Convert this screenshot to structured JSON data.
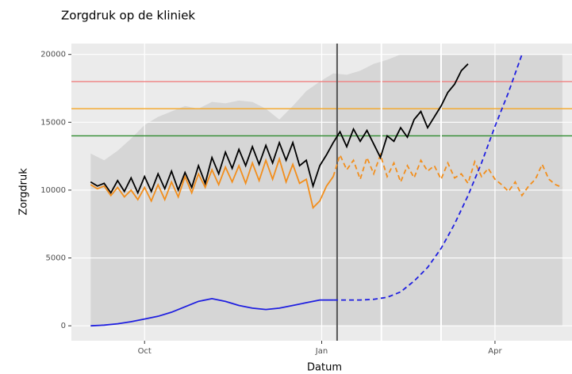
{
  "chart_data": {
    "type": "line",
    "title": "Zorgdruk op de kliniek",
    "xlabel": "Datum",
    "ylabel": "Zorgdruk",
    "xlim": [
      -38,
      222
    ],
    "ylim": [
      -1100,
      20800
    ],
    "xticks": [
      {
        "value": 0,
        "label": "Oct"
      },
      {
        "value": 92,
        "label": "Jan"
      },
      {
        "value": 182,
        "label": "Apr"
      }
    ],
    "yticks": [
      0,
      5000,
      10000,
      15000,
      20000
    ],
    "grid": true,
    "hlines": [
      {
        "y": 18000,
        "color": "#f08080"
      },
      {
        "y": 16000,
        "color": "#f5a623"
      },
      {
        "y": 14000,
        "color": "#2e8b2e"
      }
    ],
    "vlines": [
      {
        "x": 100,
        "color": "#555555"
      },
      {
        "x": 123,
        "color": "#ffffff"
      },
      {
        "x": 154,
        "color": "#ffffff"
      }
    ],
    "areas": [
      {
        "color": "#d6d6d6",
        "x": [
          -28,
          -21,
          -14,
          -7,
          0,
          7,
          14,
          21,
          28,
          35,
          42,
          49,
          56,
          63,
          70,
          77,
          84,
          91,
          98,
          105,
          112,
          119,
          126,
          133,
          140,
          147,
          154,
          161,
          168,
          175,
          182,
          189,
          196,
          203,
          210,
          217
        ],
        "values": [
          12700,
          12200,
          12900,
          13800,
          14800,
          15400,
          15800,
          16200,
          16000,
          16500,
          16400,
          16600,
          16500,
          16000,
          15200,
          16200,
          17300,
          18000,
          18600,
          18500,
          18800,
          19300,
          19600,
          20000,
          20000,
          20000,
          20000,
          20000,
          20000,
          20000,
          20000,
          20000,
          20000,
          20000,
          20000,
          20000
        ]
      }
    ],
    "series": [
      {
        "color": "#f28e1c",
        "dash": false,
        "x": [
          -28,
          -24.5,
          -21,
          -17.5,
          -14,
          -10.5,
          -7,
          -3.5,
          0,
          3.5,
          7,
          10.5,
          14,
          17.5,
          21,
          24.5,
          28,
          31.5,
          35,
          38.5,
          42,
          45.5,
          49,
          52.5,
          56,
          59.5,
          63,
          66.5,
          70,
          73.5,
          77,
          80.5,
          84,
          87.5,
          91,
          94.5,
          98
        ],
        "values": [
          10400,
          10100,
          10300,
          9600,
          10200,
          9500,
          10000,
          9300,
          10200,
          9200,
          10400,
          9300,
          10600,
          9500,
          11000,
          9800,
          11200,
          10200,
          11500,
          10400,
          11700,
          10600,
          11800,
          10500,
          12000,
          10700,
          12200,
          10800,
          12300,
          10600,
          11900,
          10500,
          10800,
          8700,
          9200,
          10300,
          11000
        ]
      },
      {
        "color": "#f28e1c",
        "dash": true,
        "x": [
          98,
          101.5,
          105,
          108.5,
          112,
          115.5,
          119,
          122.5,
          126,
          129.5,
          133,
          136.5,
          140,
          143.5,
          147,
          150.5,
          154,
          157.5,
          161,
          164.5,
          168,
          171.5,
          175,
          178.5,
          182,
          185.5,
          189,
          192.5,
          196,
          199.5,
          203,
          206.5,
          210,
          213.5,
          217
        ],
        "values": [
          11000,
          12600,
          11500,
          12200,
          10800,
          12400,
          11200,
          12600,
          11000,
          12000,
          10600,
          11800,
          10900,
          12200,
          11400,
          11800,
          10800,
          12000,
          10900,
          11200,
          10500,
          12100,
          11000,
          11600,
          10800,
          10400,
          9900,
          10600,
          9600,
          10300,
          10800,
          11900,
          10800,
          10400,
          10200
        ]
      },
      {
        "color": "#000000",
        "dash": false,
        "x": [
          -28,
          -24.5,
          -21,
          -17.5,
          -14,
          -10.5,
          -7,
          -3.5,
          0,
          3.5,
          7,
          10.5,
          14,
          17.5,
          21,
          24.5,
          28,
          31.5,
          35,
          38.5,
          42,
          45.5,
          49,
          52.5,
          56,
          59.5,
          63,
          66.5,
          70,
          73.5,
          77,
          80.5,
          84,
          87.5,
          91,
          94.5,
          98,
          101.5,
          105,
          108.5,
          112,
          115.5,
          119,
          122.5,
          126,
          129.5,
          133,
          136.5,
          140,
          143.5,
          147,
          150.5,
          154,
          157.5,
          161,
          164.5,
          168
        ],
        "values": [
          10600,
          10300,
          10500,
          9800,
          10700,
          9900,
          10900,
          9800,
          11000,
          9900,
          11200,
          10100,
          11400,
          10000,
          11300,
          10200,
          11800,
          10500,
          12400,
          11200,
          12800,
          11600,
          13000,
          11800,
          13200,
          11900,
          13300,
          12000,
          13500,
          12200,
          13500,
          11800,
          12200,
          10300,
          11800,
          12600,
          13500,
          14300,
          13200,
          14500,
          13600,
          14400,
          13400,
          12400,
          14000,
          13600,
          14600,
          13900,
          15200,
          15800,
          14600,
          15400,
          16200,
          17200,
          17800,
          18800,
          19300
        ]
      },
      {
        "color": "#1f1fe0",
        "dash": false,
        "x": [
          -28,
          -21,
          -14,
          -7,
          0,
          7,
          14,
          21,
          28,
          35,
          42,
          49,
          56,
          63,
          70,
          77,
          84,
          91,
          98
        ],
        "values": [
          0,
          50,
          150,
          300,
          500,
          700,
          1000,
          1400,
          1800,
          2000,
          1800,
          1500,
          1300,
          1200,
          1300,
          1500,
          1700,
          1900,
          1900
        ]
      },
      {
        "color": "#1f1fe0",
        "dash": true,
        "x": [
          98,
          105,
          112,
          119,
          126,
          133,
          140,
          147,
          154,
          161,
          168,
          175,
          182,
          189,
          196
        ],
        "values": [
          1900,
          1900,
          1900,
          1950,
          2100,
          2500,
          3300,
          4300,
          5700,
          7500,
          9600,
          12000,
          14700,
          17200,
          20000
        ]
      }
    ]
  }
}
